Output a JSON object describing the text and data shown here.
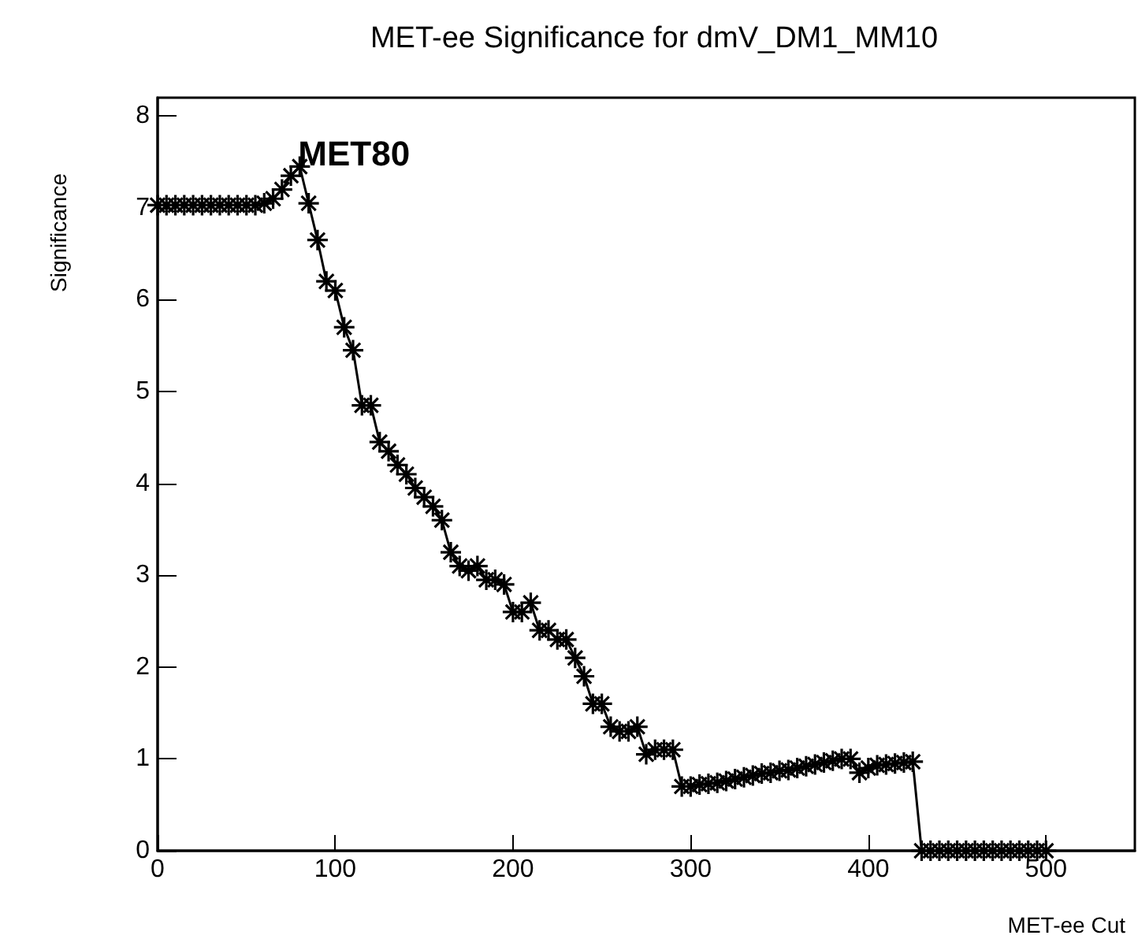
{
  "chart_data": {
    "type": "line",
    "title": "MET-ee Significance for dmV_DM1_MM10",
    "xlabel": "MET-ee Cut",
    "ylabel": "Significance",
    "x": [
      0,
      5,
      10,
      15,
      20,
      25,
      30,
      35,
      40,
      45,
      50,
      55,
      60,
      65,
      70,
      75,
      80,
      85,
      90,
      95,
      100,
      105,
      110,
      115,
      120,
      125,
      130,
      135,
      140,
      145,
      150,
      155,
      160,
      165,
      170,
      175,
      180,
      185,
      190,
      195,
      200,
      205,
      210,
      215,
      220,
      225,
      230,
      235,
      240,
      245,
      250,
      255,
      260,
      265,
      270,
      275,
      280,
      285,
      290,
      295,
      300,
      305,
      310,
      315,
      320,
      325,
      330,
      335,
      340,
      345,
      350,
      355,
      360,
      365,
      370,
      375,
      380,
      385,
      390,
      395,
      400,
      405,
      410,
      415,
      420,
      425,
      430,
      435,
      440,
      445,
      450,
      455,
      460,
      465,
      470,
      475,
      480,
      485,
      490,
      495,
      500
    ],
    "series": [
      {
        "color": "#000000",
        "values": [
          7.03,
          7.03,
          7.03,
          7.03,
          7.03,
          7.03,
          7.03,
          7.03,
          7.03,
          7.03,
          7.03,
          7.03,
          7.05,
          7.1,
          7.2,
          7.35,
          7.45,
          7.05,
          6.65,
          6.2,
          6.1,
          5.7,
          5.45,
          4.85,
          4.85,
          4.45,
          4.35,
          4.2,
          4.1,
          3.95,
          3.85,
          3.75,
          3.6,
          3.25,
          3.1,
          3.05,
          3.1,
          2.95,
          2.95,
          2.9,
          2.6,
          2.6,
          2.7,
          2.4,
          2.4,
          2.3,
          2.3,
          2.1,
          1.9,
          1.6,
          1.6,
          1.35,
          1.3,
          1.3,
          1.35,
          1.05,
          1.1,
          1.1,
          1.1,
          0.7,
          0.7,
          0.72,
          0.73,
          0.74,
          0.76,
          0.78,
          0.8,
          0.82,
          0.84,
          0.85,
          0.87,
          0.88,
          0.9,
          0.92,
          0.94,
          0.96,
          0.98,
          1.0,
          1.0,
          0.85,
          0.9,
          0.93,
          0.94,
          0.95,
          0.96,
          0.97,
          0.0,
          0,
          0,
          0,
          0,
          0,
          0,
          0,
          0,
          0,
          0,
          0,
          0,
          0,
          0
        ]
      }
    ],
    "xlim": [
      0,
      550
    ],
    "xticks": [
      0,
      100,
      200,
      300,
      400,
      500
    ],
    "ylim": [
      0,
      8.2
    ],
    "yticks": [
      0,
      1,
      2,
      3,
      4,
      5,
      6,
      7,
      8
    ],
    "marker": "cross",
    "line_style": "solid",
    "grid": false,
    "annotations": [
      {
        "text": "MET80",
        "x": 80,
        "y": 7.45
      }
    ]
  }
}
